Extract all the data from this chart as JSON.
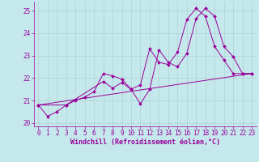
{
  "xlabel": "Windchill (Refroidissement éolien,°C)",
  "xlim": [
    -0.5,
    23.5
  ],
  "ylim": [
    19.85,
    25.4
  ],
  "bg_color": "#c5e8ec",
  "line_color": "#990099",
  "grid_color": "#aacccc",
  "series1_x": [
    0,
    1,
    2,
    3,
    4,
    5,
    6,
    7,
    8,
    9,
    10,
    11,
    12,
    13,
    14,
    15,
    16,
    17,
    18,
    19,
    20,
    21,
    22,
    23
  ],
  "series1_y": [
    20.8,
    20.3,
    20.5,
    20.8,
    21.0,
    21.15,
    21.4,
    22.2,
    22.1,
    21.95,
    21.5,
    21.7,
    23.3,
    22.7,
    22.6,
    23.15,
    24.6,
    25.1,
    24.75,
    23.4,
    22.8,
    22.2,
    22.2,
    22.2
  ],
  "series2_x": [
    0,
    3,
    7,
    8,
    9,
    10,
    11,
    12,
    13,
    14,
    15,
    16,
    17,
    18,
    19,
    20,
    21,
    22,
    23
  ],
  "series2_y": [
    20.8,
    20.8,
    21.85,
    21.55,
    21.8,
    21.5,
    20.85,
    21.5,
    23.25,
    22.7,
    22.5,
    23.1,
    24.65,
    25.1,
    24.75,
    23.4,
    22.95,
    22.2,
    22.2
  ],
  "series3_x": [
    0,
    23
  ],
  "series3_y": [
    20.8,
    22.2
  ],
  "xticks": [
    0,
    1,
    2,
    3,
    4,
    5,
    6,
    7,
    8,
    9,
    10,
    11,
    12,
    13,
    14,
    15,
    16,
    17,
    18,
    19,
    20,
    21,
    22,
    23
  ],
  "yticks": [
    20,
    21,
    22,
    23,
    24,
    25
  ],
  "fontsize": 6,
  "tick_fontsize": 5.5,
  "marker_size": 2.0,
  "line_width": 0.7
}
